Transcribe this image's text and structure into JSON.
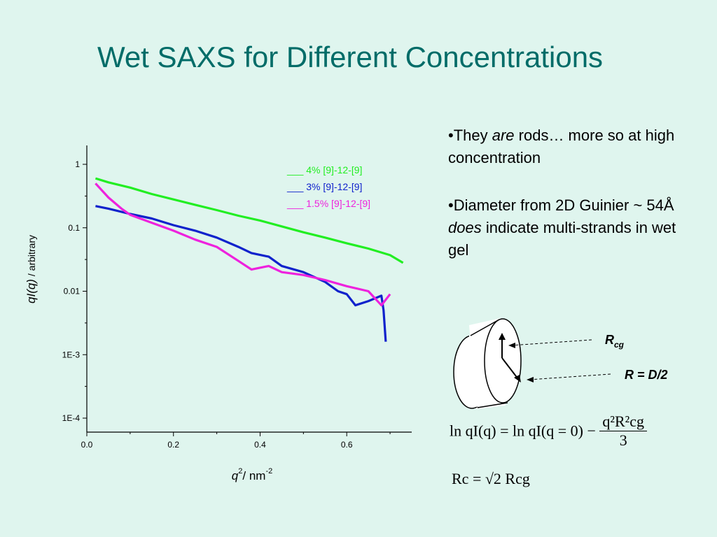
{
  "slide": {
    "title": "Wet SAXS for Different Concentrations"
  },
  "bullets": {
    "b1_part1": "•They ",
    "b1_em": "are",
    "b1_part2": " rods… more so at high concentration",
    "b2_part1": "•Diameter from 2D Guinier ~ 54Å ",
    "b2_em": "does",
    "b2_part2": " indicate multi-strands in wet gel"
  },
  "diagram": {
    "label_rcg_main": "R",
    "label_rcg_sub": "cg",
    "label_r": "R = D/2"
  },
  "equations": {
    "eq1_lhs": "ln qI(q) = ln qI(q = 0) −",
    "eq1_num": "q²R²cg",
    "eq1_den": "3",
    "eq2_text": "Rc = √2 Rcg"
  },
  "colors": {
    "background": "#dff5ee",
    "title": "#006c68",
    "series_4pct": "#22ee22",
    "series_3pct": "#1022cc",
    "series_1p5pct": "#ee22dd"
  },
  "chart_data": {
    "type": "line",
    "xlabel_main": "q",
    "xlabel_exp": "2",
    "xlabel_unit": "/ nm",
    "xlabel_unit_exp": "-2",
    "ylabel_main": "qI(q)",
    "ylabel_unit": " / arbitrary",
    "x_scale": "linear",
    "y_scale": "log",
    "xlim": [
      0.0,
      0.75
    ],
    "ylim": [
      6e-05,
      2.0
    ],
    "x_ticks": [
      0.0,
      0.2,
      0.4,
      0.6
    ],
    "x_tick_labels": [
      "0.0",
      "0.2",
      "0.4",
      "0.6"
    ],
    "y_ticks": [
      1,
      0.1,
      0.01,
      0.001,
      0.0001
    ],
    "y_tick_labels": [
      "1",
      "0.1",
      "0.01",
      "1E-3",
      "1E-4"
    ],
    "legend_position": "top-right",
    "series": [
      {
        "name": "4% [9]-12-[9]",
        "legend_label": "___ 4% [9]-12-[9]",
        "x": [
          0.02,
          0.05,
          0.1,
          0.15,
          0.2,
          0.25,
          0.3,
          0.35,
          0.4,
          0.45,
          0.5,
          0.55,
          0.6,
          0.65,
          0.7,
          0.73
        ],
        "y": [
          0.6,
          0.52,
          0.43,
          0.34,
          0.28,
          0.23,
          0.19,
          0.155,
          0.13,
          0.105,
          0.085,
          0.07,
          0.057,
          0.047,
          0.037,
          0.028
        ]
      },
      {
        "name": "3% [9]-12-[9]",
        "legend_label": "___ 3% [9]-12-[9]",
        "x": [
          0.02,
          0.05,
          0.1,
          0.15,
          0.2,
          0.25,
          0.3,
          0.35,
          0.38,
          0.42,
          0.45,
          0.5,
          0.55,
          0.58,
          0.6,
          0.62,
          0.65,
          0.68,
          0.685,
          0.69
        ],
        "y": [
          0.22,
          0.2,
          0.165,
          0.14,
          0.11,
          0.09,
          0.07,
          0.05,
          0.04,
          0.035,
          0.025,
          0.02,
          0.014,
          0.01,
          0.009,
          0.006,
          0.007,
          0.0085,
          0.005,
          0.0016
        ]
      },
      {
        "name": "1.5% [9]-12-[9]",
        "legend_label": "___ 1.5% [9]-12-[9]",
        "x": [
          0.02,
          0.05,
          0.08,
          0.1,
          0.15,
          0.2,
          0.25,
          0.3,
          0.35,
          0.38,
          0.42,
          0.45,
          0.5,
          0.55,
          0.6,
          0.65,
          0.68,
          0.7
        ],
        "y": [
          0.5,
          0.3,
          0.2,
          0.16,
          0.12,
          0.09,
          0.065,
          0.05,
          0.03,
          0.022,
          0.025,
          0.02,
          0.018,
          0.015,
          0.012,
          0.01,
          0.006,
          0.009
        ]
      }
    ]
  }
}
